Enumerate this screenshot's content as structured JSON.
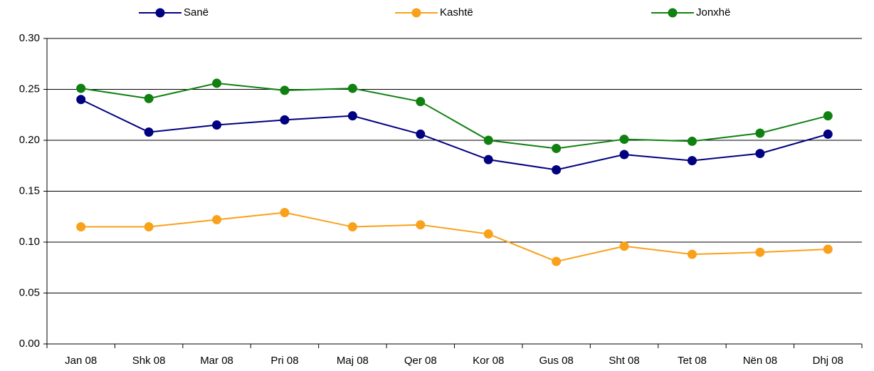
{
  "chart_data": {
    "type": "line",
    "categories": [
      "Jan 08",
      "Shk 08",
      "Mar 08",
      "Pri 08",
      "Maj 08",
      "Qer 08",
      "Kor 08",
      "Gus 08",
      "Sht 08",
      "Tet 08",
      "Nën 08",
      "Dhj 08"
    ],
    "series": [
      {
        "name": "Sanë",
        "color": "#000080",
        "values": [
          0.24,
          0.208,
          0.215,
          0.22,
          0.224,
          0.206,
          0.181,
          0.171,
          0.186,
          0.18,
          0.187,
          0.206
        ]
      },
      {
        "name": "Kashtë",
        "color": "#f9a11b",
        "values": [
          0.115,
          0.115,
          0.122,
          0.129,
          0.115,
          0.117,
          0.108,
          0.081,
          0.096,
          0.088,
          0.09,
          0.093
        ]
      },
      {
        "name": "Jonxhë",
        "color": "#108010",
        "values": [
          0.251,
          0.241,
          0.256,
          0.249,
          0.251,
          0.238,
          0.2,
          0.192,
          0.201,
          0.199,
          0.207,
          0.224
        ]
      }
    ],
    "ylim": [
      0,
      0.3
    ],
    "yticks": [
      {
        "value": 0,
        "label": "0.00"
      },
      {
        "value": 0.05,
        "label": "0.05"
      },
      {
        "value": 0.1,
        "label": "0.10"
      },
      {
        "value": 0.15,
        "label": "0.15"
      },
      {
        "value": 0.2,
        "label": "0.20"
      },
      {
        "value": 0.25,
        "label": "0.25"
      },
      {
        "value": 0.3,
        "label": "0.30"
      }
    ],
    "grid": true,
    "legend": "top"
  }
}
